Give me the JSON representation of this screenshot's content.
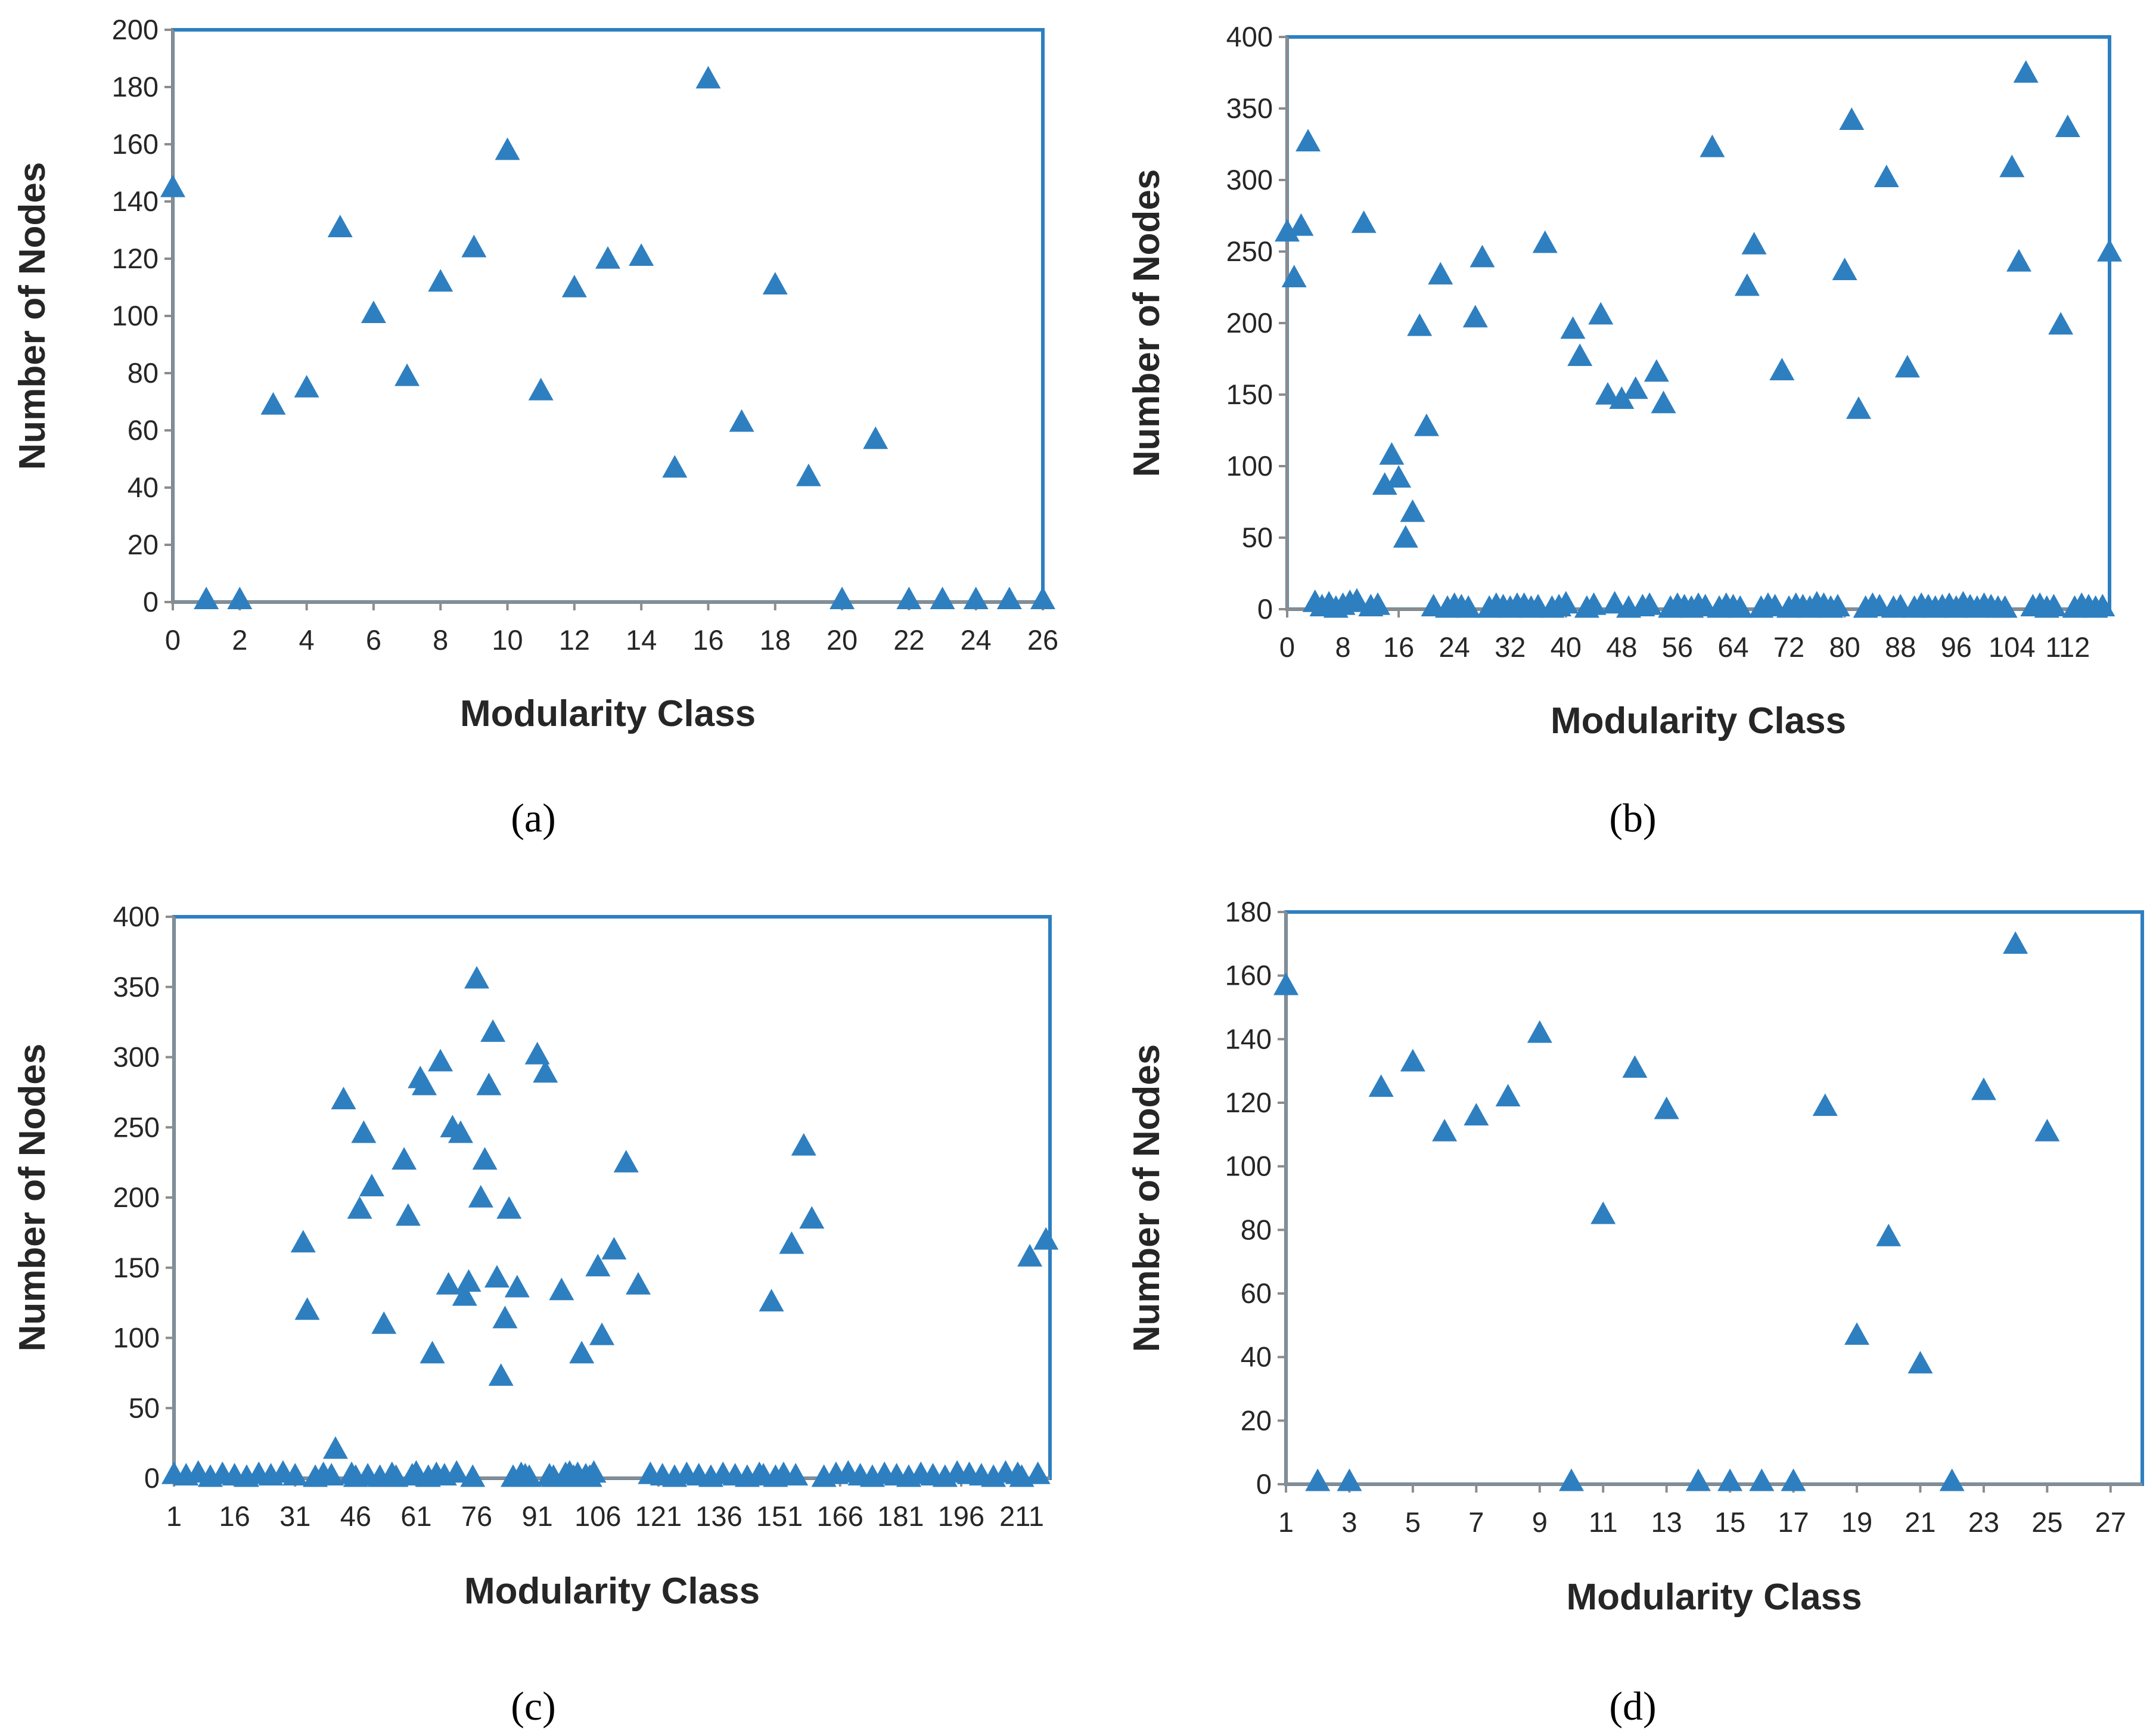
{
  "colors": {
    "marker": "#2e7fc0",
    "frame": "#2e7fc0",
    "axis": "#8c8c8c",
    "text": "#262626"
  },
  "chart_data": [
    {
      "type": "scatter",
      "panel_label": "(a)",
      "xlabel": "Modularity Class",
      "ylabel": "Number of Nodes",
      "xlim": [
        0,
        26
      ],
      "ylim": [
        0,
        200
      ],
      "xticks": [
        "0",
        "2",
        "4",
        "6",
        "8",
        "10",
        "12",
        "14",
        "16",
        "18",
        "20",
        "22",
        "24",
        "26"
      ],
      "yticks": [
        "0",
        "20",
        "40",
        "60",
        "80",
        "100",
        "120",
        "140",
        "160",
        "180",
        "200"
      ],
      "marker": "triangle",
      "x": [
        0,
        1,
        2,
        3,
        4,
        5,
        6,
        7,
        8,
        9,
        10,
        11,
        12,
        13,
        14,
        15,
        16,
        17,
        18,
        19,
        20,
        21,
        22,
        23,
        24,
        25,
        26
      ],
      "y": [
        145,
        1,
        1,
        69,
        75,
        131,
        101,
        79,
        112,
        124,
        158,
        74,
        110,
        120,
        121,
        47,
        183,
        63,
        111,
        44,
        1,
        57,
        1,
        1,
        1,
        1,
        1
      ]
    },
    {
      "type": "scatter",
      "panel_label": "(b)",
      "xlabel": "Modularity Class",
      "ylabel": "Number of Nodes",
      "xlim": [
        0,
        118
      ],
      "ylim": [
        0,
        400
      ],
      "xticks": [
        "0",
        "8",
        "16",
        "24",
        "32",
        "40",
        "48",
        "56",
        "64",
        "72",
        "80",
        "88",
        "96",
        "104",
        "112"
      ],
      "yticks": [
        "0",
        "50",
        "100",
        "150",
        "200",
        "250",
        "300",
        "350",
        "400"
      ],
      "marker": "triangle",
      "x": [
        0,
        1,
        2,
        3,
        4,
        5,
        6,
        7,
        8,
        9,
        10,
        11,
        12,
        13,
        14,
        15,
        16,
        17,
        18,
        19,
        20,
        21,
        22,
        23,
        24,
        25,
        26,
        27,
        28,
        29,
        30,
        31,
        32,
        33,
        34,
        35,
        36,
        37,
        38,
        39,
        40,
        41,
        42,
        43,
        44,
        45,
        46,
        47,
        48,
        49,
        50,
        51,
        52,
        53,
        54,
        55,
        56,
        57,
        58,
        59,
        60,
        61,
        62,
        63,
        64,
        65,
        66,
        67,
        68,
        69,
        70,
        71,
        72,
        73,
        74,
        75,
        76,
        77,
        78,
        79,
        80,
        81,
        82,
        83,
        84,
        85,
        86,
        87,
        88,
        89,
        90,
        91,
        92,
        93,
        94,
        95,
        96,
        97,
        98,
        99,
        100,
        101,
        102,
        103,
        104,
        105,
        106,
        107,
        108,
        109,
        110,
        111,
        112,
        113,
        114,
        115,
        116,
        117,
        118
      ],
      "y": [
        264,
        232,
        268,
        327,
        5,
        2,
        4,
        1,
        3,
        5,
        6,
        270,
        2,
        3,
        87,
        108,
        92,
        50,
        68,
        198,
        128,
        2,
        234,
        1,
        3,
        2,
        1,
        204,
        246,
        1,
        3,
        2,
        1,
        3,
        3,
        1,
        2,
        256,
        1,
        2,
        4,
        196,
        177,
        1,
        3,
        206,
        150,
        4,
        147,
        1,
        154,
        2,
        3,
        166,
        144,
        1,
        3,
        2,
        1,
        3,
        2,
        323,
        1,
        3,
        2,
        1,
        226,
        255,
        1,
        3,
        2,
        167,
        1,
        3,
        2,
        1,
        4,
        3,
        1,
        2,
        237,
        342,
        140,
        1,
        3,
        2,
        302,
        1,
        2,
        169,
        1,
        3,
        2,
        1,
        2,
        3,
        1,
        4,
        2,
        1,
        3,
        2,
        1,
        1,
        309,
        243,
        375,
        2,
        3,
        1,
        2,
        199,
        337,
        1,
        3,
        2,
        1,
        2,
        250
      ]
    },
    {
      "type": "scatter",
      "panel_label": "(c)",
      "xlabel": "Modularity Class",
      "ylabel": "Number of Nodes",
      "xlim": [
        1,
        218
      ],
      "ylim": [
        0,
        400
      ],
      "xticks": [
        "1",
        "16",
        "31",
        "46",
        "61",
        "76",
        "91",
        "106",
        "121",
        "136",
        "151",
        "166",
        "181",
        "196",
        "211"
      ],
      "yticks": [
        "0",
        "50",
        "100",
        "150",
        "200",
        "250",
        "300",
        "350",
        "400"
      ],
      "marker": "triangle",
      "x": [
        1,
        4,
        7,
        10,
        13,
        16,
        19,
        22,
        25,
        28,
        31,
        33,
        34,
        36,
        38,
        40,
        41,
        43,
        45,
        46,
        47,
        48,
        49,
        50,
        52,
        53,
        55,
        56,
        58,
        59,
        60,
        61,
        62,
        63,
        64,
        65,
        66,
        67,
        68,
        69,
        70,
        71,
        72,
        73,
        74,
        75,
        76,
        77,
        78,
        79,
        80,
        81,
        82,
        83,
        84,
        85,
        86,
        87,
        88,
        89,
        91,
        93,
        94,
        95,
        97,
        98,
        99,
        100,
        101,
        102,
        103,
        104,
        105,
        106,
        107,
        110,
        113,
        116,
        119,
        122,
        125,
        128,
        131,
        134,
        137,
        140,
        143,
        146,
        147,
        149,
        150,
        152,
        154,
        155,
        157,
        159,
        162,
        165,
        168,
        171,
        174,
        177,
        180,
        183,
        186,
        189,
        192,
        195,
        198,
        201,
        204,
        207,
        210,
        211,
        213,
        215,
        217
      ],
      "y": [
        3,
        2,
        4,
        1,
        3,
        2,
        1,
        3,
        2,
        4,
        2,
        168,
        120,
        1,
        3,
        2,
        21,
        270,
        3,
        1,
        192,
        246,
        2,
        208,
        1,
        110,
        3,
        1,
        227,
        187,
        2,
        4,
        285,
        280,
        1,
        89,
        3,
        297,
        2,
        138,
        250,
        4,
        246,
        130,
        140,
        1,
        356,
        200,
        227,
        280,
        318,
        143,
        73,
        114,
        192,
        1,
        136,
        3,
        2,
        1,
        302,
        289,
        2,
        1,
        134,
        3,
        4,
        1,
        3,
        89,
        2,
        1,
        4,
        151,
        102,
        163,
        225,
        138,
        3,
        2,
        1,
        3,
        2,
        1,
        3,
        2,
        1,
        3,
        2,
        126,
        1,
        3,
        167,
        2,
        237,
        185,
        1,
        3,
        4,
        2,
        1,
        3,
        2,
        1,
        3,
        2,
        1,
        4,
        3,
        2,
        1,
        4,
        3,
        1,
        158,
        3,
        170
      ]
    },
    {
      "type": "scatter",
      "panel_label": "(d)",
      "xlabel": "Modularity Class",
      "ylabel": "Number of Nodes",
      "xlim": [
        1,
        28
      ],
      "ylim": [
        0,
        180
      ],
      "xticks": [
        "1",
        "3",
        "5",
        "7",
        "9",
        "11",
        "13",
        "15",
        "17",
        "19",
        "21",
        "23",
        "25",
        "27"
      ],
      "yticks": [
        "0",
        "20",
        "40",
        "60",
        "80",
        "100",
        "120",
        "140",
        "160",
        "180"
      ],
      "marker": "triangle",
      "x": [
        1,
        2,
        3,
        4,
        5,
        6,
        7,
        8,
        9,
        10,
        11,
        12,
        13,
        14,
        15,
        16,
        17,
        18,
        19,
        20,
        21,
        22,
        23,
        24,
        25
      ],
      "y": [
        157,
        1,
        1,
        125,
        133,
        111,
        116,
        122,
        142,
        1,
        85,
        131,
        118,
        1,
        1,
        1,
        1,
        119,
        47,
        78,
        38,
        1,
        124,
        170,
        111
      ]
    }
  ]
}
